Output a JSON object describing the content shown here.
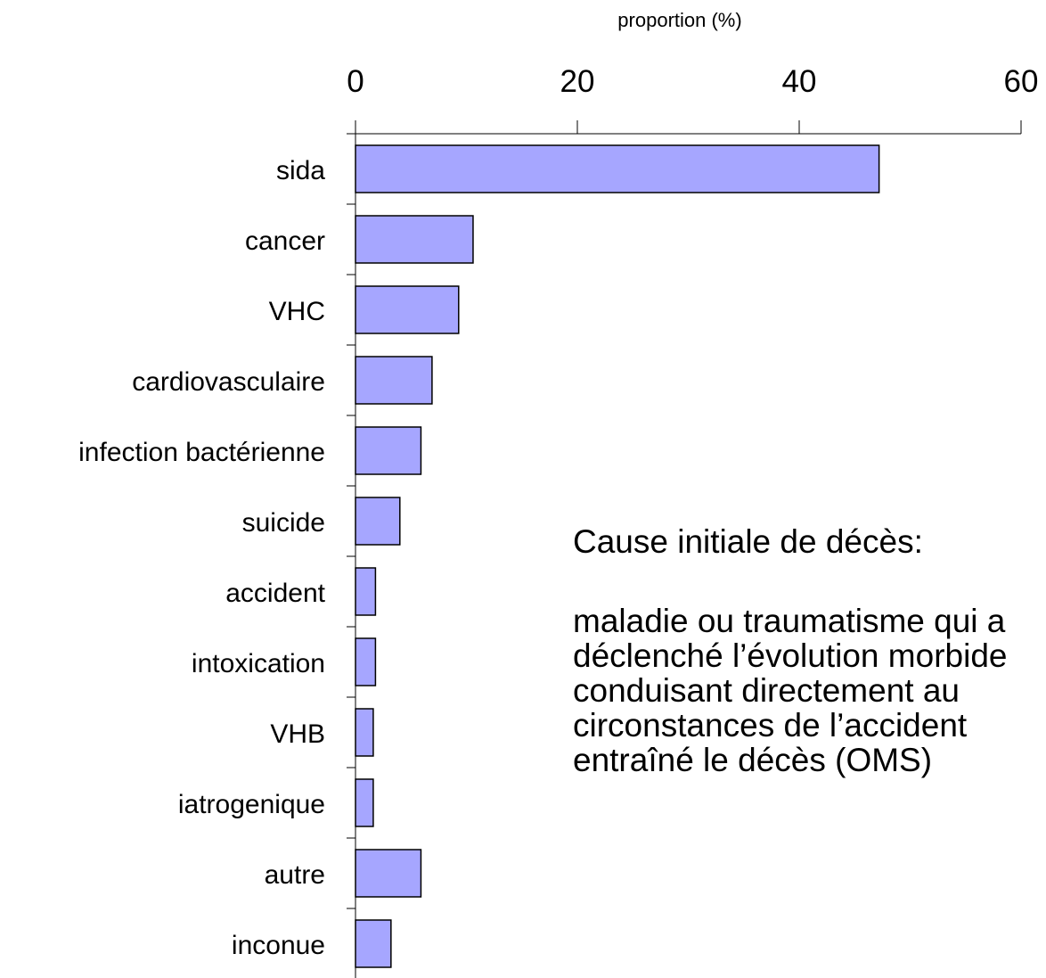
{
  "chart_data": {
    "type": "barh",
    "xlabel": "proportion (%)",
    "categories": [
      "sida",
      "cancer",
      "VHC",
      "cardiovasculaire",
      "infection bactérienne",
      "suicide",
      "accident",
      "intoxication",
      "VHB",
      "iatrogenique",
      "autre",
      "inconue"
    ],
    "values": [
      47.2,
      10.6,
      9.3,
      6.9,
      5.9,
      4.0,
      1.8,
      1.8,
      1.6,
      1.6,
      5.9,
      3.2
    ],
    "color": "#a6a6ff",
    "xlim": [
      0,
      60
    ],
    "xticks": [
      0,
      20,
      40,
      60
    ],
    "annotation": {
      "title": "Cause initiale de décès:",
      "lines": [
        "maladie ou traumatisme qui a",
        "déclenché l’évolution morbide",
        "conduisant directement au",
        "circonstances de l’accident",
        "entraîné le décès (OMS)"
      ]
    }
  }
}
